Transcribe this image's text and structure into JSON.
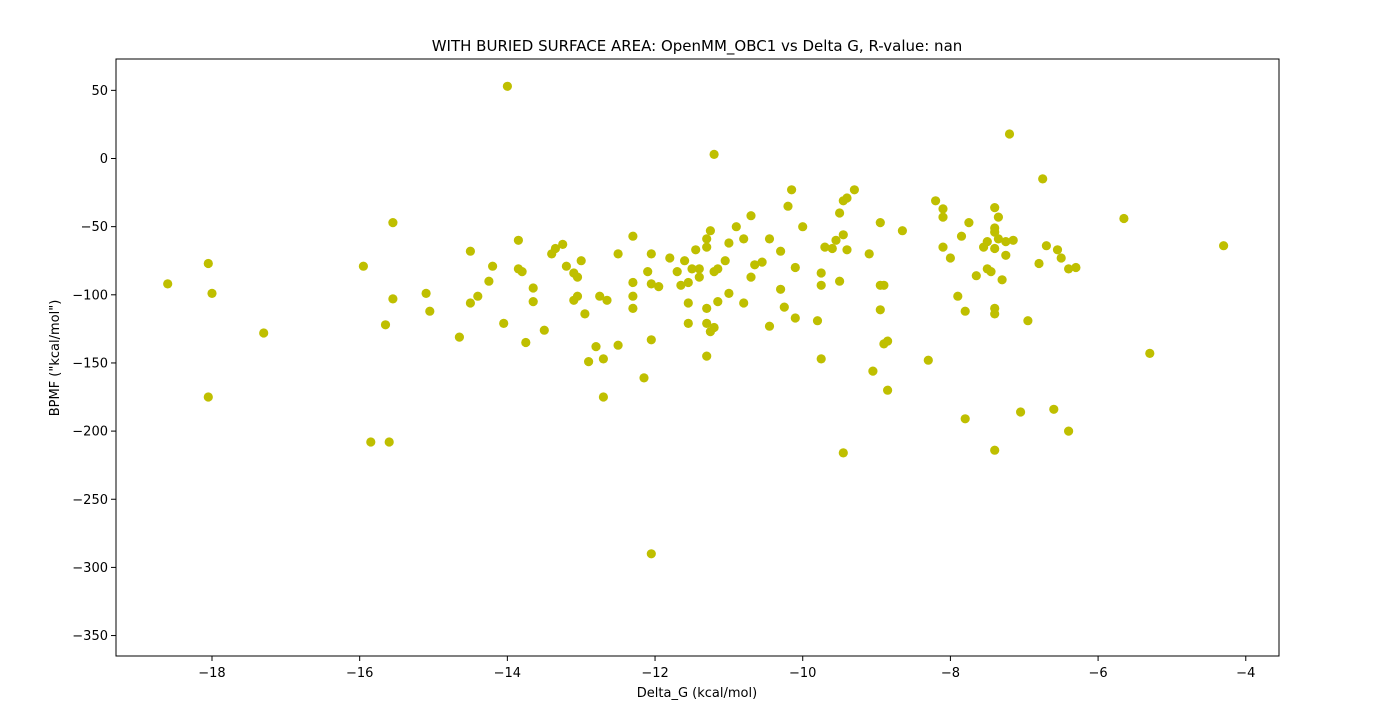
{
  "chart_data": {
    "type": "scatter",
    "title": "WITH BURIED SURFACE AREA: OpenMM_OBC1 vs Delta G, R-value: nan",
    "xlabel": "Delta_G (kcal/mol)",
    "ylabel": "BPMF (\"kcal/mol\")",
    "xlim": [
      -19.3,
      -3.55
    ],
    "ylim": [
      -365,
      73
    ],
    "xticks": [
      -18,
      -16,
      -14,
      -12,
      -10,
      -8,
      -6,
      -4
    ],
    "xtick_labels": [
      "−18",
      "−16",
      "−14",
      "−12",
      "−10",
      "−8",
      "−6",
      "−4"
    ],
    "yticks": [
      50,
      0,
      -50,
      -100,
      -150,
      -200,
      -250,
      -300,
      -350
    ],
    "ytick_labels": [
      "50",
      "0",
      "−50",
      "−100",
      "−150",
      "−200",
      "−250",
      "−300",
      "−350"
    ],
    "marker_color": "#bfbf00",
    "grid": false,
    "legend": "none",
    "points": [
      [
        -18.6,
        -92
      ],
      [
        -18.05,
        -77
      ],
      [
        -18.0,
        -99
      ],
      [
        -18.05,
        -175
      ],
      [
        -17.3,
        -128
      ],
      [
        -15.95,
        -79
      ],
      [
        -15.85,
        -208
      ],
      [
        -15.65,
        -122
      ],
      [
        -15.55,
        -103
      ],
      [
        -15.55,
        -47
      ],
      [
        -15.6,
        -208
      ],
      [
        -15.1,
        -99
      ],
      [
        -15.05,
        -112
      ],
      [
        -14.65,
        -131
      ],
      [
        -14.5,
        -68
      ],
      [
        -14.5,
        -106
      ],
      [
        -14.4,
        -101
      ],
      [
        -14.25,
        -90
      ],
      [
        -14.2,
        -79
      ],
      [
        -14.05,
        -121
      ],
      [
        -14.0,
        53
      ],
      [
        -13.85,
        -60
      ],
      [
        -13.85,
        -81
      ],
      [
        -13.8,
        -83
      ],
      [
        -13.75,
        -135
      ],
      [
        -13.65,
        -95
      ],
      [
        -13.65,
        -105
      ],
      [
        -13.5,
        -126
      ],
      [
        -13.4,
        -70
      ],
      [
        -13.35,
        -66
      ],
      [
        -13.25,
        -63
      ],
      [
        -13.2,
        -79
      ],
      [
        -13.1,
        -84
      ],
      [
        -13.1,
        -104
      ],
      [
        -13.05,
        -87
      ],
      [
        -13.05,
        -101
      ],
      [
        -13.0,
        -75
      ],
      [
        -12.95,
        -114
      ],
      [
        -12.9,
        -149
      ],
      [
        -12.8,
        -138
      ],
      [
        -12.75,
        -101
      ],
      [
        -12.7,
        -147
      ],
      [
        -12.65,
        -104
      ],
      [
        -12.7,
        -175
      ],
      [
        -12.5,
        -137
      ],
      [
        -12.5,
        -70
      ],
      [
        -12.3,
        -57
      ],
      [
        -12.3,
        -101
      ],
      [
        -12.3,
        -110
      ],
      [
        -12.3,
        -91
      ],
      [
        -12.15,
        -161
      ],
      [
        -12.1,
        -83
      ],
      [
        -12.05,
        -70
      ],
      [
        -12.05,
        -92
      ],
      [
        -12.05,
        -133
      ],
      [
        -12.05,
        -290
      ],
      [
        -11.95,
        -94
      ],
      [
        -11.8,
        -73
      ],
      [
        -11.7,
        -83
      ],
      [
        -11.65,
        -93
      ],
      [
        -11.6,
        -75
      ],
      [
        -11.55,
        -106
      ],
      [
        -11.55,
        -121
      ],
      [
        -11.55,
        -91
      ],
      [
        -11.5,
        -81
      ],
      [
        -11.45,
        -67
      ],
      [
        -11.4,
        -87
      ],
      [
        -11.4,
        -81
      ],
      [
        -11.3,
        -59
      ],
      [
        -11.3,
        -65
      ],
      [
        -11.3,
        -110
      ],
      [
        -11.3,
        -121
      ],
      [
        -11.3,
        -145
      ],
      [
        -11.25,
        -53
      ],
      [
        -11.25,
        -127
      ],
      [
        -11.2,
        -83
      ],
      [
        -11.2,
        -124
      ],
      [
        -11.2,
        3
      ],
      [
        -11.15,
        -81
      ],
      [
        -11.15,
        -105
      ],
      [
        -11.05,
        -75
      ],
      [
        -11.0,
        -62
      ],
      [
        -11.0,
        -99
      ],
      [
        -10.9,
        -50
      ],
      [
        -10.8,
        -59
      ],
      [
        -10.8,
        -106
      ],
      [
        -10.7,
        -42
      ],
      [
        -10.7,
        -87
      ],
      [
        -10.65,
        -78
      ],
      [
        -10.55,
        -76
      ],
      [
        -10.45,
        -59
      ],
      [
        -10.45,
        -123
      ],
      [
        -10.3,
        -96
      ],
      [
        -10.3,
        -68
      ],
      [
        -10.25,
        -109
      ],
      [
        -10.2,
        -35
      ],
      [
        -10.15,
        -23
      ],
      [
        -10.1,
        -80
      ],
      [
        -10.1,
        -117
      ],
      [
        -10.0,
        -50
      ],
      [
        -9.8,
        -119
      ],
      [
        -9.75,
        -84
      ],
      [
        -9.75,
        -93
      ],
      [
        -9.75,
        -147
      ],
      [
        -9.7,
        -65
      ],
      [
        -9.6,
        -66
      ],
      [
        -9.55,
        -60
      ],
      [
        -9.5,
        -90
      ],
      [
        -9.5,
        -40
      ],
      [
        -9.45,
        -56
      ],
      [
        -9.45,
        -31
      ],
      [
        -9.4,
        -67
      ],
      [
        -9.4,
        -29
      ],
      [
        -9.45,
        -216
      ],
      [
        -9.3,
        -23
      ],
      [
        -9.1,
        -70
      ],
      [
        -9.05,
        -156
      ],
      [
        -8.95,
        -47
      ],
      [
        -8.95,
        -93
      ],
      [
        -8.95,
        -111
      ],
      [
        -8.9,
        -93
      ],
      [
        -8.9,
        -136
      ],
      [
        -8.85,
        -134
      ],
      [
        -8.85,
        -170
      ],
      [
        -8.65,
        -53
      ],
      [
        -8.3,
        -148
      ],
      [
        -8.2,
        -31
      ],
      [
        -8.1,
        -65
      ],
      [
        -8.1,
        -43
      ],
      [
        -8.1,
        -37
      ],
      [
        -8.0,
        -73
      ],
      [
        -7.9,
        -101
      ],
      [
        -7.85,
        -57
      ],
      [
        -7.8,
        -112
      ],
      [
        -7.8,
        -191
      ],
      [
        -7.75,
        -47
      ],
      [
        -7.65,
        -86
      ],
      [
        -7.55,
        -65
      ],
      [
        -7.5,
        -61
      ],
      [
        -7.5,
        -81
      ],
      [
        -7.45,
        -83
      ],
      [
        -7.4,
        -51
      ],
      [
        -7.4,
        -54
      ],
      [
        -7.4,
        -36
      ],
      [
        -7.4,
        -66
      ],
      [
        -7.4,
        -110
      ],
      [
        -7.4,
        -114
      ],
      [
        -7.4,
        -214
      ],
      [
        -7.35,
        -43
      ],
      [
        -7.35,
        -59
      ],
      [
        -7.3,
        -89
      ],
      [
        -7.25,
        -61
      ],
      [
        -7.25,
        -71
      ],
      [
        -7.2,
        18
      ],
      [
        -7.15,
        -60
      ],
      [
        -7.05,
        -186
      ],
      [
        -6.95,
        -119
      ],
      [
        -6.8,
        -77
      ],
      [
        -6.75,
        -15
      ],
      [
        -6.7,
        -64
      ],
      [
        -6.6,
        -184
      ],
      [
        -6.55,
        -67
      ],
      [
        -6.5,
        -73
      ],
      [
        -6.4,
        -200
      ],
      [
        -6.4,
        -81
      ],
      [
        -6.3,
        -80
      ],
      [
        -5.65,
        -44
      ],
      [
        -5.3,
        -143
      ],
      [
        -4.3,
        -64
      ]
    ]
  }
}
